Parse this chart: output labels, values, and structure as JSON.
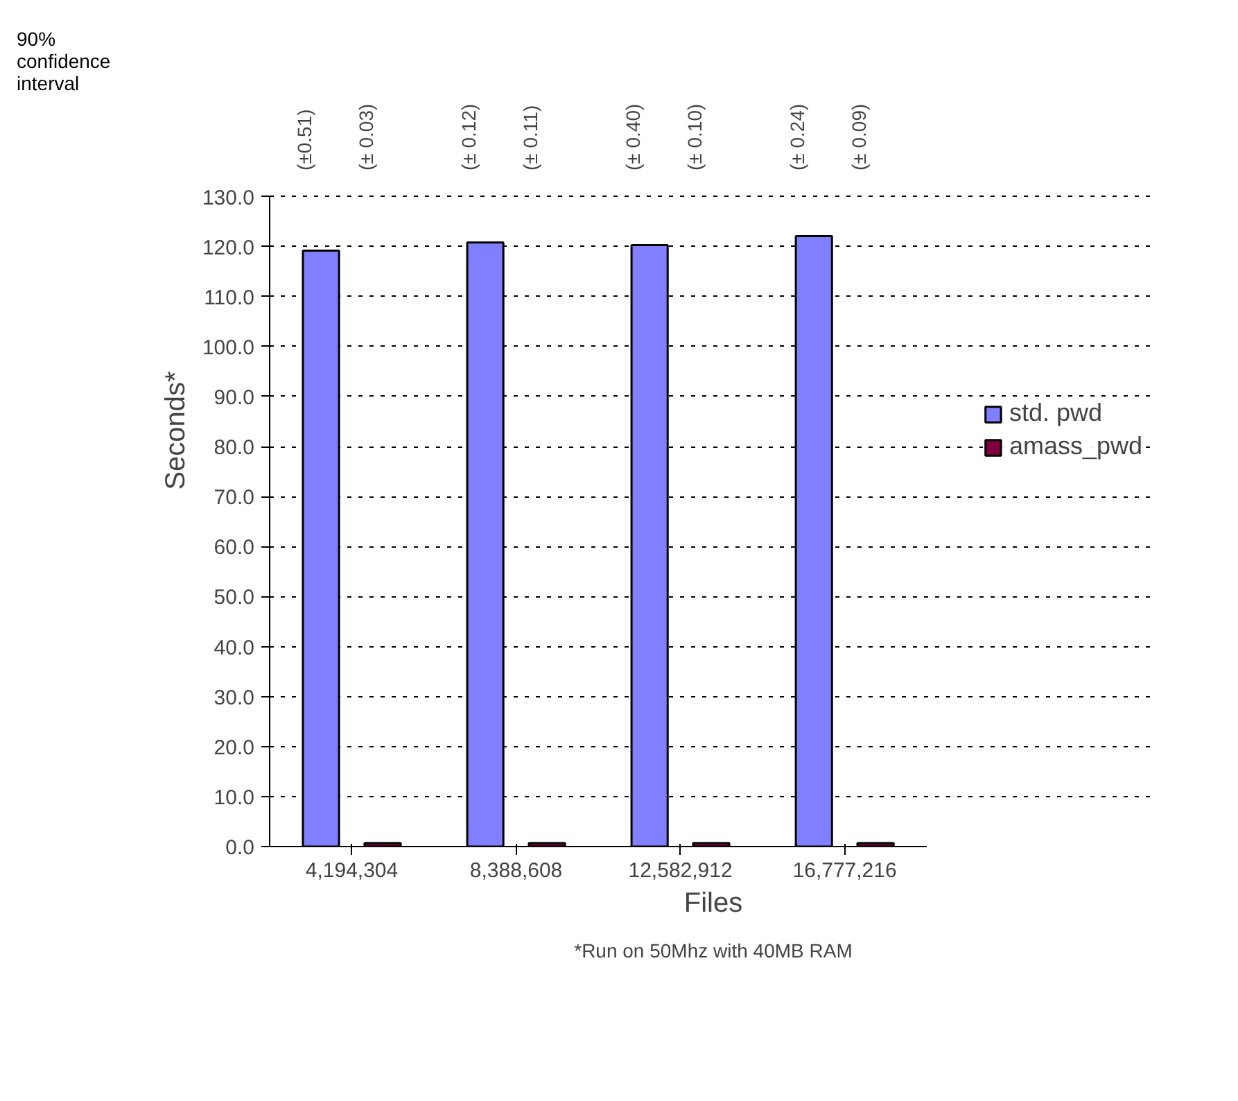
{
  "chart_data": {
    "type": "bar",
    "categories": [
      "4,194,304",
      "8,388,608",
      "12,582,912",
      "16,777,216"
    ],
    "series": [
      {
        "name": "std. pwd",
        "color": "#8080ff",
        "values": [
          119.2,
          120.8,
          120.3,
          122.1
        ]
      },
      {
        "name": "amass_pwd",
        "color": "#800040",
        "values": [
          0.7,
          0.7,
          0.7,
          0.7
        ]
      }
    ],
    "xlabel": "Files",
    "ylabel": "Seconds*",
    "ylim": [
      0,
      130
    ],
    "yticks": [
      {
        "value": 0,
        "label": "0.0"
      },
      {
        "value": 10,
        "label": "10.0"
      },
      {
        "value": 20,
        "label": "20.0"
      },
      {
        "value": 30,
        "label": "30.0"
      },
      {
        "value": 40,
        "label": "40.0"
      },
      {
        "value": 50,
        "label": "50.0"
      },
      {
        "value": 60,
        "label": "60.0"
      },
      {
        "value": 70,
        "label": "70.0"
      },
      {
        "value": 80,
        "label": "80.0"
      },
      {
        "value": 90,
        "label": "90.0"
      },
      {
        "value": 100,
        "label": "100.0"
      },
      {
        "value": 110,
        "label": "110.0"
      },
      {
        "value": 120,
        "label": "120.0"
      },
      {
        "value": 130,
        "label": "130.0"
      }
    ],
    "grid": "y",
    "legend": "right",
    "annotations": [
      "90%\nconfidence\ninterval",
      "(±0.51)",
      "(± 0.03)",
      "(± 0.12)",
      "(± 0.11)",
      "(± 0.40)",
      "(± 0.10)",
      "(± 0.24)",
      "(± 0.09)",
      "*Run on 50Mhz with 40MB RAM"
    ]
  }
}
